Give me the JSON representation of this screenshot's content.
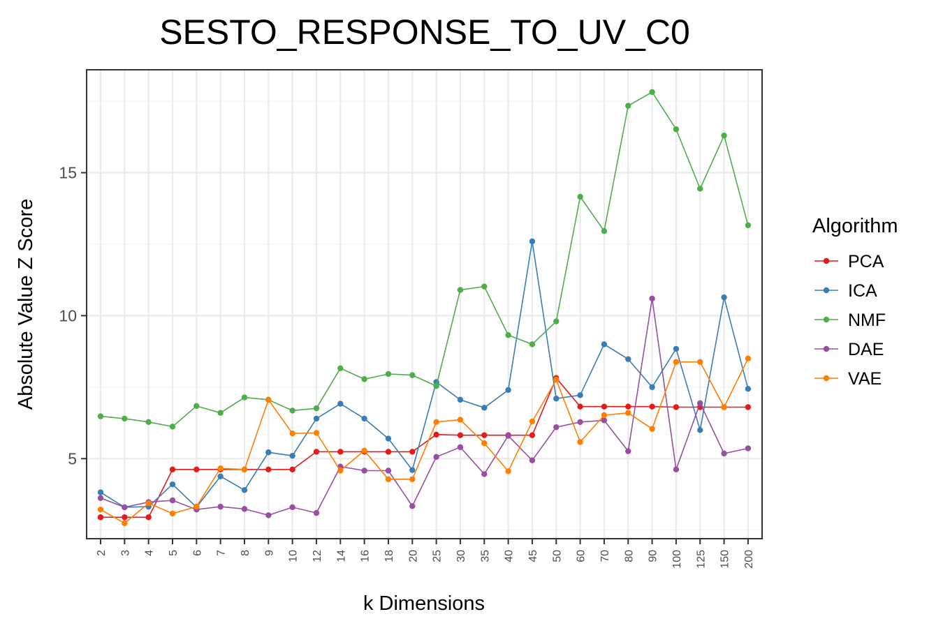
{
  "chart_data": {
    "type": "line",
    "title": "SESTO_RESPONSE_TO_UV_C0",
    "xlabel": "k Dimensions",
    "ylabel": "Absolute Value Z Score",
    "categories": [
      "2",
      "3",
      "4",
      "5",
      "6",
      "7",
      "8",
      "9",
      "10",
      "12",
      "14",
      "16",
      "18",
      "20",
      "25",
      "30",
      "35",
      "40",
      "45",
      "50",
      "60",
      "70",
      "80",
      "90",
      "100",
      "125",
      "150",
      "200"
    ],
    "ylim": [
      2.2,
      18.6
    ],
    "yticks": [
      5,
      10,
      15
    ],
    "grid": true,
    "legend": {
      "title": "Algorithm",
      "position": "right"
    },
    "series": [
      {
        "name": "PCA",
        "color": "#e41a1c",
        "values": [
          2.95,
          2.95,
          2.95,
          4.62,
          4.62,
          4.62,
          4.62,
          4.62,
          4.62,
          5.24,
          5.24,
          5.24,
          5.24,
          5.24,
          5.84,
          5.82,
          5.82,
          5.82,
          5.82,
          7.82,
          6.82,
          6.82,
          6.82,
          6.82,
          6.8,
          6.8,
          6.8,
          6.8
        ]
      },
      {
        "name": "ICA",
        "color": "#377eb8",
        "values": [
          3.82,
          3.3,
          3.32,
          4.1,
          3.3,
          4.38,
          3.9,
          5.22,
          5.1,
          6.4,
          6.92,
          6.4,
          5.7,
          4.6,
          7.68,
          7.06,
          6.78,
          7.4,
          12.6,
          7.1,
          7.22,
          9,
          8.48,
          7.5,
          8.84,
          6,
          10.64,
          7.44
        ]
      },
      {
        "name": "NMF",
        "color": "#4daf4a",
        "values": [
          6.48,
          6.4,
          6.28,
          6.12,
          6.84,
          6.6,
          7.14,
          7.06,
          6.68,
          6.76,
          8.16,
          7.78,
          7.96,
          7.92,
          7.54,
          10.9,
          11.02,
          9.32,
          9,
          9.8,
          14.16,
          12.96,
          17.34,
          17.82,
          16.52,
          14.44,
          16.3,
          13.16
        ]
      },
      {
        "name": "DAE",
        "color": "#984ea3",
        "values": [
          3.62,
          3.3,
          3.48,
          3.54,
          3.22,
          3.32,
          3.24,
          3.02,
          3.3,
          3.1,
          4.72,
          4.58,
          4.58,
          3.34,
          5.06,
          5.4,
          4.46,
          5.8,
          4.94,
          6.1,
          6.28,
          6.34,
          5.26,
          10.6,
          4.62,
          6.94,
          5.18,
          5.36
        ]
      },
      {
        "name": "VAE",
        "color": "#ff7f00",
        "values": [
          3.22,
          2.74,
          3.44,
          3.08,
          3.32,
          4.66,
          4.62,
          7.06,
          5.88,
          5.9,
          4.58,
          5.28,
          4.28,
          4.28,
          6.28,
          6.36,
          5.54,
          4.56,
          6.3,
          7.76,
          5.58,
          6.52,
          6.6,
          6.04,
          8.38,
          8.38,
          6.8,
          8.5
        ]
      }
    ]
  }
}
